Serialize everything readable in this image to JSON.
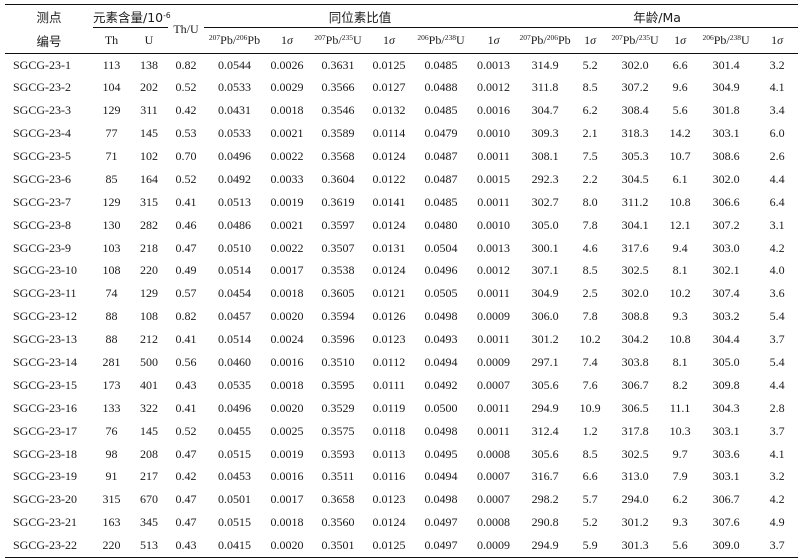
{
  "header": {
    "spot_line1": "测点",
    "spot_line2": "编号",
    "content": "元素含量/10",
    "content_sup": "-6",
    "th_u": "Th/U",
    "ratio_group": "同位素比值",
    "age_group": "年龄/Ma",
    "th": "Th",
    "u": "U",
    "r1_sup1": "207",
    "r1_mid": "Pb/",
    "r1_sup2": "206",
    "r1_end": "Pb",
    "r2_sup1": "207",
    "r2_mid": "Pb/",
    "r2_sup2": "235",
    "r2_end": "U",
    "r3_sup1": "206",
    "r3_mid": "Pb/",
    "r3_sup2": "238",
    "r3_end": "U",
    "sigma": "1σ"
  },
  "columns": [
    "spot",
    "th",
    "u",
    "thu",
    "r76",
    "r76s",
    "r75",
    "r75s",
    "r68",
    "r68s",
    "a76",
    "a76s",
    "a75",
    "a75s",
    "a68",
    "a68s"
  ],
  "rows": [
    [
      "SGCG-23-1",
      "113",
      "138",
      "0.82",
      "0.0544",
      "0.0026",
      "0.3631",
      "0.0125",
      "0.0485",
      "0.0013",
      "314.9",
      "5.2",
      "302.0",
      "6.6",
      "301.4",
      "3.2"
    ],
    [
      "SGCG-23-2",
      "104",
      "202",
      "0.52",
      "0.0533",
      "0.0029",
      "0.3566",
      "0.0127",
      "0.0488",
      "0.0012",
      "311.8",
      "8.5",
      "307.2",
      "9.6",
      "304.9",
      "4.1"
    ],
    [
      "SGCG-23-3",
      "129",
      "311",
      "0.42",
      "0.0431",
      "0.0018",
      "0.3546",
      "0.0132",
      "0.0485",
      "0.0016",
      "304.7",
      "6.2",
      "308.4",
      "5.6",
      "301.8",
      "3.4"
    ],
    [
      "SGCG-23-4",
      "77",
      "145",
      "0.53",
      "0.0533",
      "0.0021",
      "0.3589",
      "0.0114",
      "0.0479",
      "0.0010",
      "309.3",
      "2.1",
      "318.3",
      "14.2",
      "303.1",
      "6.0"
    ],
    [
      "SGCG-23-5",
      "71",
      "102",
      "0.70",
      "0.0496",
      "0.0022",
      "0.3568",
      "0.0124",
      "0.0487",
      "0.0011",
      "308.1",
      "7.5",
      "305.3",
      "10.7",
      "308.6",
      "2.6"
    ],
    [
      "SGCG-23-6",
      "85",
      "164",
      "0.52",
      "0.0492",
      "0.0033",
      "0.3604",
      "0.0122",
      "0.0487",
      "0.0015",
      "292.3",
      "2.2",
      "304.5",
      "6.1",
      "302.0",
      "4.4"
    ],
    [
      "SGCG-23-7",
      "129",
      "315",
      "0.41",
      "0.0513",
      "0.0019",
      "0.3619",
      "0.0141",
      "0.0485",
      "0.0011",
      "302.7",
      "8.0",
      "311.2",
      "10.8",
      "306.6",
      "6.4"
    ],
    [
      "SGCG-23-8",
      "130",
      "282",
      "0.46",
      "0.0486",
      "0.0021",
      "0.3597",
      "0.0124",
      "0.0480",
      "0.0010",
      "305.0",
      "7.8",
      "304.1",
      "12.1",
      "307.2",
      "3.1"
    ],
    [
      "SGCG-23-9",
      "103",
      "218",
      "0.47",
      "0.0510",
      "0.0022",
      "0.3507",
      "0.0131",
      "0.0504",
      "0.0013",
      "300.1",
      "4.6",
      "317.6",
      "9.4",
      "303.0",
      "4.2"
    ],
    [
      "SGCG-23-10",
      "108",
      "220",
      "0.49",
      "0.0514",
      "0.0017",
      "0.3538",
      "0.0124",
      "0.0496",
      "0.0012",
      "307.1",
      "8.5",
      "302.5",
      "8.1",
      "302.1",
      "4.0"
    ],
    [
      "SGCG-23-11",
      "74",
      "129",
      "0.57",
      "0.0454",
      "0.0018",
      "0.3605",
      "0.0121",
      "0.0505",
      "0.0011",
      "304.9",
      "2.5",
      "302.0",
      "10.2",
      "307.4",
      "3.6"
    ],
    [
      "SGCG-23-12",
      "88",
      "108",
      "0.82",
      "0.0457",
      "0.0020",
      "0.3594",
      "0.0126",
      "0.0498",
      "0.0009",
      "306.0",
      "7.8",
      "308.8",
      "9.3",
      "303.2",
      "5.4"
    ],
    [
      "SGCG-23-13",
      "88",
      "212",
      "0.41",
      "0.0514",
      "0.0024",
      "0.3596",
      "0.0123",
      "0.0493",
      "0.0011",
      "301.2",
      "10.2",
      "304.2",
      "10.8",
      "304.4",
      "3.7"
    ],
    [
      "SGCG-23-14",
      "281",
      "500",
      "0.56",
      "0.0460",
      "0.0016",
      "0.3510",
      "0.0112",
      "0.0494",
      "0.0009",
      "297.1",
      "7.4",
      "303.8",
      "8.1",
      "305.0",
      "5.4"
    ],
    [
      "SGCG-23-15",
      "173",
      "401",
      "0.43",
      "0.0535",
      "0.0018",
      "0.3595",
      "0.0111",
      "0.0492",
      "0.0007",
      "305.6",
      "7.6",
      "306.7",
      "8.2",
      "309.8",
      "4.4"
    ],
    [
      "SGCG-23-16",
      "133",
      "322",
      "0.41",
      "0.0496",
      "0.0020",
      "0.3529",
      "0.0119",
      "0.0500",
      "0.0011",
      "294.9",
      "10.9",
      "306.5",
      "11.1",
      "304.3",
      "2.8"
    ],
    [
      "SGCG-23-17",
      "76",
      "145",
      "0.52",
      "0.0455",
      "0.0025",
      "0.3575",
      "0.0118",
      "0.0498",
      "0.0011",
      "312.4",
      "1.2",
      "317.8",
      "10.3",
      "303.1",
      "3.7"
    ],
    [
      "SGCG-23-18",
      "98",
      "208",
      "0.47",
      "0.0515",
      "0.0019",
      "0.3593",
      "0.0113",
      "0.0495",
      "0.0008",
      "305.6",
      "8.5",
      "302.5",
      "9.7",
      "303.6",
      "4.1"
    ],
    [
      "SGCG-23-19",
      "91",
      "217",
      "0.42",
      "0.0453",
      "0.0016",
      "0.3511",
      "0.0116",
      "0.0494",
      "0.0007",
      "316.7",
      "6.6",
      "313.0",
      "7.9",
      "303.1",
      "3.2"
    ],
    [
      "SGCG-23-20",
      "315",
      "670",
      "0.47",
      "0.0501",
      "0.0017",
      "0.3658",
      "0.0123",
      "0.0498",
      "0.0007",
      "298.2",
      "5.7",
      "294.0",
      "6.2",
      "306.7",
      "4.2"
    ],
    [
      "SGCG-23-21",
      "163",
      "345",
      "0.47",
      "0.0515",
      "0.0018",
      "0.3560",
      "0.0124",
      "0.0497",
      "0.0008",
      "290.8",
      "5.2",
      "301.2",
      "9.3",
      "307.6",
      "4.9"
    ],
    [
      "SGCG-23-22",
      "220",
      "513",
      "0.43",
      "0.0415",
      "0.0020",
      "0.3501",
      "0.0125",
      "0.0497",
      "0.0009",
      "294.9",
      "5.9",
      "301.3",
      "5.6",
      "309.0",
      "3.7"
    ]
  ]
}
